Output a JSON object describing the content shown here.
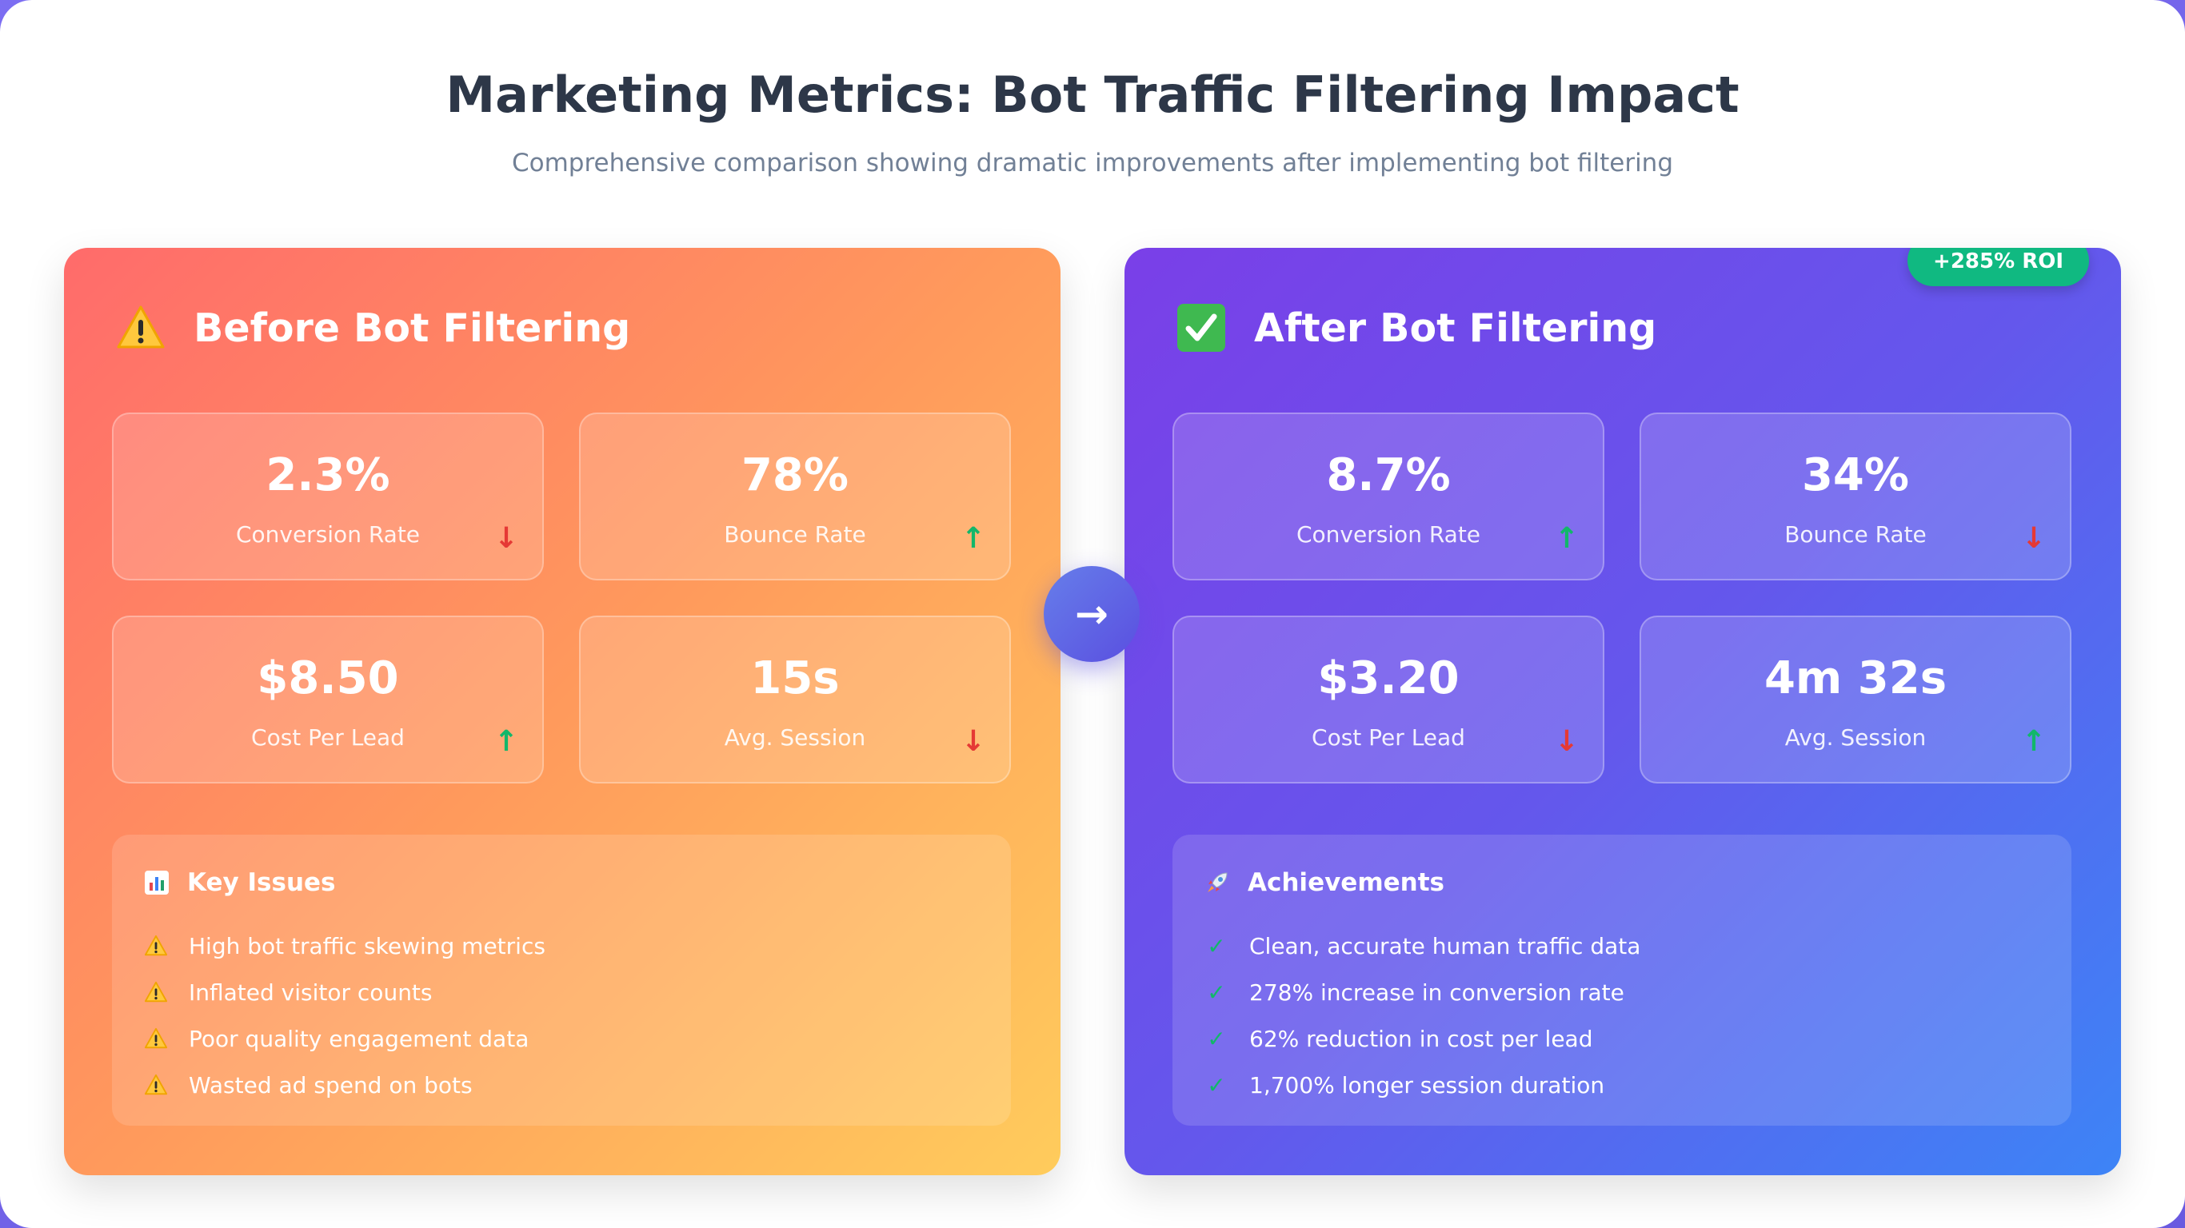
{
  "header": {
    "title": "Marketing Metrics: Bot Traffic Filtering Impact",
    "subtitle": "Comprehensive comparison showing dramatic improvements after implementing bot filtering"
  },
  "before": {
    "icon": "warning-icon",
    "title": "Before Bot Filtering",
    "metrics": [
      {
        "value": "2.3%",
        "label": "Conversion Rate",
        "trend": "↓",
        "trend_dir": "down"
      },
      {
        "value": "78%",
        "label": "Bounce Rate",
        "trend": "↑",
        "trend_dir": "up"
      },
      {
        "value": "$8.50",
        "label": "Cost Per Lead",
        "trend": "↑",
        "trend_dir": "up"
      },
      {
        "value": "15s",
        "label": "Avg. Session",
        "trend": "↓",
        "trend_dir": "down"
      }
    ],
    "list": {
      "icon": "bar-chart-icon",
      "title": "Key Issues",
      "items": [
        "High bot traffic skewing metrics",
        "Inflated visitor counts",
        "Poor quality engagement data",
        "Wasted ad spend on bots"
      ]
    }
  },
  "after": {
    "icon": "check-mark-icon",
    "title": "After Bot Filtering",
    "badge": "+285% ROI",
    "metrics": [
      {
        "value": "8.7%",
        "label": "Conversion Rate",
        "trend": "↑",
        "trend_dir": "up"
      },
      {
        "value": "34%",
        "label": "Bounce Rate",
        "trend": "↓",
        "trend_dir": "down"
      },
      {
        "value": "$3.20",
        "label": "Cost Per Lead",
        "trend": "↓",
        "trend_dir": "down"
      },
      {
        "value": "4m 32s",
        "label": "Avg. Session",
        "trend": "↑",
        "trend_dir": "up"
      }
    ],
    "list": {
      "icon": "rocket-icon",
      "title": "Achievements",
      "check": "✓",
      "items": [
        "Clean, accurate human traffic data",
        "278% increase in conversion rate",
        "62% reduction in cost per lead",
        "1,700% longer session duration"
      ]
    }
  },
  "arrow": {
    "icon": "arrow-right-icon",
    "glyph": "→"
  },
  "colors": {
    "trend_up": "#12b76a",
    "trend_down": "#e53935",
    "roi_badge": "#10b981",
    "title": "#2d3748",
    "subtitle": "#718096"
  }
}
